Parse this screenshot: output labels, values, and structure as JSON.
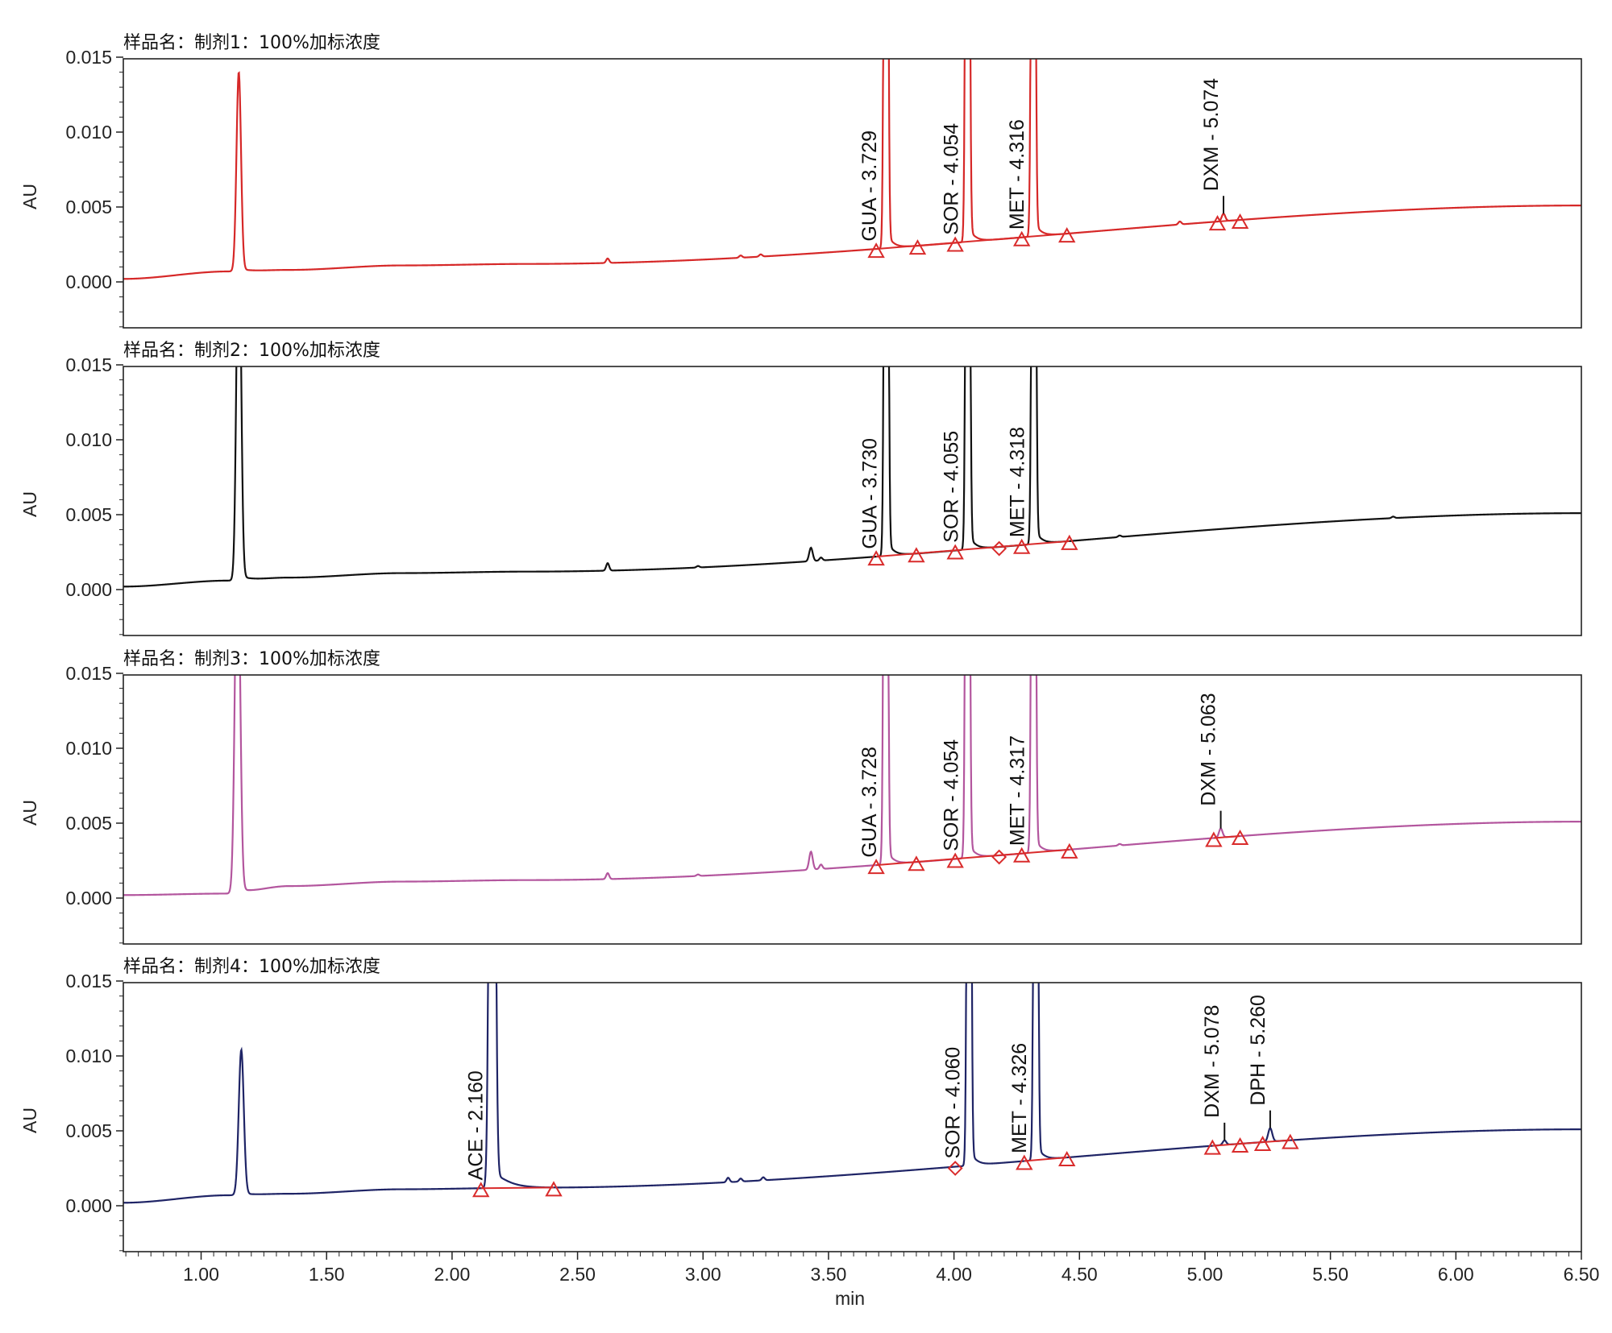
{
  "chart_data": {
    "type": "line",
    "xlabel": "min",
    "xlim": [
      0.69,
      6.5
    ],
    "x_ticks": [
      "1.00",
      "1.50",
      "2.00",
      "2.50",
      "3.00",
      "3.50",
      "4.00",
      "4.50",
      "5.00",
      "5.50",
      "6.00",
      "6.50"
    ],
    "grid": false,
    "baseline_color": "#d92b2b",
    "panels": [
      {
        "title": "样品名：制剂1：100%加标浓度",
        "ylabel": "AU",
        "ylim": [
          -0.003,
          0.015
        ],
        "y_ticks": [
          "0.015",
          "0.010",
          "0.005",
          "0.000"
        ],
        "color": "#d62828",
        "baseline_start": 0.0002,
        "baseline_end": 0.0051,
        "bumps": [
          [
            1.11,
            0.0007
          ],
          [
            1.35,
            0.0008
          ],
          [
            1.8,
            0.0011
          ],
          [
            2.3,
            0.0012
          ]
        ],
        "peaks": [
          {
            "rt": 1.15,
            "height": 0.0133,
            "width": 0.009,
            "tail": 0.03
          },
          {
            "rt": 2.62,
            "height": 0.0003,
            "width": 0.006,
            "tail": 0.0
          },
          {
            "rt": 3.15,
            "height": 0.00015,
            "width": 0.006,
            "tail": 0.0
          },
          {
            "rt": 3.23,
            "height": 0.00015,
            "width": 0.006,
            "tail": 0.0
          },
          {
            "rt": 3.729,
            "height": 0.08,
            "width": 0.006,
            "tail": 0.02
          },
          {
            "rt": 4.054,
            "height": 0.08,
            "width": 0.006,
            "tail": 0.02
          },
          {
            "rt": 4.316,
            "height": 0.08,
            "width": 0.006,
            "tail": 0.02
          },
          {
            "rt": 4.9,
            "height": 0.0002,
            "width": 0.006,
            "tail": 0.0
          },
          {
            "rt": 5.074,
            "height": 0.0005,
            "width": 0.007,
            "tail": 0.0
          }
        ],
        "labels": [
          {
            "text": "GUA - 3.729",
            "rt": 3.729
          },
          {
            "text": "SOR - 4.054",
            "rt": 4.054
          },
          {
            "text": "MET - 4.316",
            "rt": 4.316
          },
          {
            "text": "DXM - 5.074",
            "rt": 5.074
          }
        ],
        "markers": [
          {
            "x": 3.69,
            "kind": "triangle"
          },
          {
            "x": 3.855,
            "kind": "triangle"
          },
          {
            "x": 4.005,
            "kind": "triangle"
          },
          {
            "x": 4.27,
            "kind": "triangle"
          },
          {
            "x": 4.45,
            "kind": "triangle"
          },
          {
            "x": 5.05,
            "kind": "triangle"
          },
          {
            "x": 5.14,
            "kind": "triangle"
          }
        ],
        "baselines": [
          [
            3.69,
            4.45
          ],
          [
            5.05,
            5.14
          ]
        ]
      },
      {
        "title": "样品名：制剂2：100%加标浓度",
        "ylabel": "AU",
        "ylim": [
          -0.003,
          0.015
        ],
        "y_ticks": [
          "0.015",
          "0.010",
          "0.005",
          "0.000"
        ],
        "color": "#111111",
        "baseline_start": 0.0002,
        "baseline_end": 0.0051,
        "bumps": [
          [
            1.11,
            0.0006
          ],
          [
            1.35,
            0.0008
          ],
          [
            1.8,
            0.0011
          ],
          [
            2.3,
            0.0012
          ]
        ],
        "peaks": [
          {
            "rt": 1.15,
            "height": 0.025,
            "width": 0.009,
            "tail": 0.03
          },
          {
            "rt": 2.62,
            "height": 0.0005,
            "width": 0.006,
            "tail": 0.0
          },
          {
            "rt": 2.98,
            "height": 0.0001,
            "width": 0.006,
            "tail": 0.0
          },
          {
            "rt": 3.43,
            "height": 0.0009,
            "width": 0.007,
            "tail": 0.0
          },
          {
            "rt": 3.47,
            "height": 0.0002,
            "width": 0.006,
            "tail": 0.0
          },
          {
            "rt": 3.73,
            "height": 0.08,
            "width": 0.006,
            "tail": 0.02
          },
          {
            "rt": 4.055,
            "height": 0.08,
            "width": 0.006,
            "tail": 0.02
          },
          {
            "rt": 4.318,
            "height": 0.08,
            "width": 0.006,
            "tail": 0.02
          },
          {
            "rt": 4.66,
            "height": 0.0001,
            "width": 0.006,
            "tail": 0.0
          },
          {
            "rt": 5.75,
            "height": 0.0001,
            "width": 0.006,
            "tail": 0.0
          }
        ],
        "labels": [
          {
            "text": "GUA - 3.730",
            "rt": 3.73
          },
          {
            "text": "SOR - 4.055",
            "rt": 4.055
          },
          {
            "text": "MET - 4.318",
            "rt": 4.318
          }
        ],
        "markers": [
          {
            "x": 3.69,
            "kind": "triangle"
          },
          {
            "x": 3.85,
            "kind": "triangle"
          },
          {
            "x": 4.005,
            "kind": "triangle"
          },
          {
            "x": 4.18,
            "kind": "diamond"
          },
          {
            "x": 4.27,
            "kind": "triangle"
          },
          {
            "x": 4.46,
            "kind": "triangle"
          }
        ],
        "baselines": [
          [
            3.69,
            4.46
          ]
        ]
      },
      {
        "title": "样品名：制剂3：100%加标浓度",
        "ylabel": "AU",
        "ylim": [
          -0.003,
          0.015
        ],
        "y_ticks": [
          "0.015",
          "0.010",
          "0.005",
          "0.000"
        ],
        "color": "#b3569e",
        "baseline_start": 0.0002,
        "baseline_end": 0.0051,
        "bumps": [
          [
            1.11,
            0.0003
          ],
          [
            1.35,
            0.0008
          ],
          [
            1.8,
            0.0011
          ],
          [
            2.3,
            0.0012
          ]
        ],
        "peaks": [
          {
            "rt": 1.145,
            "height": 0.025,
            "width": 0.01,
            "tail": 0.03
          },
          {
            "rt": 2.62,
            "height": 0.0004,
            "width": 0.006,
            "tail": 0.0
          },
          {
            "rt": 2.98,
            "height": 0.0001,
            "width": 0.006,
            "tail": 0.0
          },
          {
            "rt": 3.43,
            "height": 0.0012,
            "width": 0.007,
            "tail": 0.0
          },
          {
            "rt": 3.47,
            "height": 0.0003,
            "width": 0.006,
            "tail": 0.0
          },
          {
            "rt": 3.728,
            "height": 0.08,
            "width": 0.006,
            "tail": 0.02
          },
          {
            "rt": 4.054,
            "height": 0.08,
            "width": 0.006,
            "tail": 0.02
          },
          {
            "rt": 4.317,
            "height": 0.08,
            "width": 0.006,
            "tail": 0.02
          },
          {
            "rt": 4.66,
            "height": 0.0001,
            "width": 0.006,
            "tail": 0.0
          },
          {
            "rt": 5.063,
            "height": 0.0006,
            "width": 0.007,
            "tail": 0.0
          }
        ],
        "labels": [
          {
            "text": "GUA - 3.728",
            "rt": 3.728
          },
          {
            "text": "SOR - 4.054",
            "rt": 4.054
          },
          {
            "text": "MET - 4.317",
            "rt": 4.317
          },
          {
            "text": "DXM - 5.063",
            "rt": 5.063
          }
        ],
        "markers": [
          {
            "x": 3.69,
            "kind": "triangle"
          },
          {
            "x": 3.85,
            "kind": "triangle"
          },
          {
            "x": 4.005,
            "kind": "triangle"
          },
          {
            "x": 4.18,
            "kind": "diamond"
          },
          {
            "x": 4.27,
            "kind": "triangle"
          },
          {
            "x": 4.46,
            "kind": "triangle"
          },
          {
            "x": 5.035,
            "kind": "triangle"
          },
          {
            "x": 5.14,
            "kind": "triangle"
          }
        ],
        "baselines": [
          [
            3.69,
            4.46
          ],
          [
            5.035,
            5.14
          ]
        ]
      },
      {
        "title": "样品名：制剂4：100%加标浓度",
        "ylabel": "AU",
        "ylim": [
          -0.003,
          0.015
        ],
        "y_ticks": [
          "0.015",
          "0.010",
          "0.005",
          "0.000"
        ],
        "color": "#1f2466",
        "baseline_start": 0.0002,
        "baseline_end": 0.0051,
        "bumps": [
          [
            1.11,
            0.0007
          ],
          [
            1.35,
            0.0008
          ],
          [
            1.8,
            0.0011
          ],
          [
            2.3,
            0.0012
          ]
        ],
        "peaks": [
          {
            "rt": 1.16,
            "height": 0.0097,
            "width": 0.01,
            "tail": 0.03
          },
          {
            "rt": 2.16,
            "height": 0.08,
            "width": 0.009,
            "tail": 0.05
          },
          {
            "rt": 3.1,
            "height": 0.0003,
            "width": 0.006,
            "tail": 0.0
          },
          {
            "rt": 3.15,
            "height": 0.0002,
            "width": 0.006,
            "tail": 0.0
          },
          {
            "rt": 3.24,
            "height": 0.0002,
            "width": 0.006,
            "tail": 0.0
          },
          {
            "rt": 4.06,
            "height": 0.08,
            "width": 0.006,
            "tail": 0.02
          },
          {
            "rt": 4.326,
            "height": 0.08,
            "width": 0.006,
            "tail": 0.02
          },
          {
            "rt": 5.078,
            "height": 0.0003,
            "width": 0.007,
            "tail": 0.0
          },
          {
            "rt": 5.26,
            "height": 0.0009,
            "width": 0.008,
            "tail": 0.01
          }
        ],
        "labels": [
          {
            "text": "ACE - 2.160",
            "rt": 2.16
          },
          {
            "text": "SOR - 4.060",
            "rt": 4.06
          },
          {
            "text": "MET - 4.326",
            "rt": 4.326
          },
          {
            "text": "DXM - 5.078",
            "rt": 5.078
          },
          {
            "text": "DPH - 5.260",
            "rt": 5.26
          }
        ],
        "markers": [
          {
            "x": 2.115,
            "kind": "triangle"
          },
          {
            "x": 2.405,
            "kind": "triangle"
          },
          {
            "x": 4.005,
            "kind": "diamond"
          },
          {
            "x": 4.28,
            "kind": "triangle"
          },
          {
            "x": 4.45,
            "kind": "triangle"
          },
          {
            "x": 5.03,
            "kind": "triangle"
          },
          {
            "x": 5.14,
            "kind": "triangle"
          },
          {
            "x": 5.23,
            "kind": "triangle"
          },
          {
            "x": 5.34,
            "kind": "triangle"
          }
        ],
        "baselines": [
          [
            2.115,
            2.405
          ],
          [
            4.28,
            4.45
          ],
          [
            5.03,
            5.34
          ]
        ]
      }
    ]
  }
}
